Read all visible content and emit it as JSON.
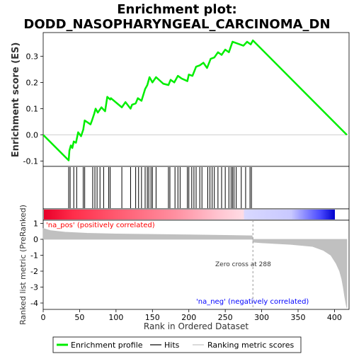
{
  "chart_data": {
    "type": "line",
    "title_line1": "Enrichment plot:",
    "title_line2": "DODD_NASOPHARYNGEAL_CARCINOMA_DN",
    "es_ylabel": "Enrichment score (ES)",
    "metric_ylabel_line1": "Ranked list metric (PreRanked)",
    "xlabel": "Rank in Ordered Dataset",
    "xlim": [
      0,
      420
    ],
    "es_ylim": [
      -0.12,
      0.39
    ],
    "metric_ylim": [
      -4.4,
      1.2
    ],
    "x_ticks": [
      0,
      50,
      100,
      150,
      200,
      250,
      300,
      350,
      400
    ],
    "es_ticks": [
      -0.1,
      0.0,
      0.1,
      0.2,
      0.3
    ],
    "metric_ticks": [
      1,
      0,
      -1,
      -2,
      -3,
      -4
    ],
    "es_curve": {
      "x": [
        0,
        35,
        36,
        38,
        40,
        42,
        45,
        48,
        52,
        55,
        57,
        65,
        67,
        70,
        72,
        75,
        80,
        85,
        88,
        92,
        93,
        108,
        113,
        120,
        122,
        127,
        130,
        135,
        140,
        143,
        146,
        150,
        155,
        165,
        172,
        175,
        180,
        185,
        190,
        198,
        200,
        205,
        210,
        215,
        220,
        225,
        230,
        235,
        240,
        245,
        250,
        255,
        260,
        265,
        270,
        275,
        280,
        285,
        288,
        417
      ],
      "y": [
        0.0,
        -0.097,
        -0.06,
        -0.04,
        -0.05,
        -0.025,
        -0.03,
        0.01,
        -0.005,
        0.02,
        0.055,
        0.04,
        0.055,
        0.08,
        0.1,
        0.085,
        0.105,
        0.09,
        0.145,
        0.135,
        0.14,
        0.105,
        0.125,
        0.1,
        0.115,
        0.12,
        0.14,
        0.13,
        0.175,
        0.19,
        0.22,
        0.2,
        0.22,
        0.195,
        0.19,
        0.21,
        0.2,
        0.225,
        0.215,
        0.205,
        0.23,
        0.225,
        0.26,
        0.265,
        0.275,
        0.255,
        0.29,
        0.295,
        0.315,
        0.305,
        0.325,
        0.315,
        0.355,
        0.35,
        0.345,
        0.34,
        0.355,
        0.345,
        0.36,
        0.0
      ]
    },
    "hits": [
      35,
      37,
      42,
      46,
      55,
      57,
      68,
      71,
      74,
      78,
      83,
      90,
      92,
      108,
      120,
      127,
      131,
      135,
      140,
      143,
      145,
      148,
      150,
      155,
      172,
      174,
      181,
      185,
      188,
      198,
      200,
      204,
      207,
      210,
      215,
      218,
      226,
      229,
      232,
      235,
      240,
      245,
      250,
      255,
      258,
      260,
      262,
      265,
      272,
      278,
      284,
      286
    ],
    "metric_curve": {
      "x": [
        0,
        10,
        30,
        60,
        100,
        150,
        200,
        250,
        287,
        288,
        300,
        340,
        370,
        385,
        395,
        402,
        407,
        410,
        412,
        414,
        416,
        417
      ],
      "y": [
        0.68,
        0.55,
        0.45,
        0.38,
        0.34,
        0.31,
        0.28,
        0.25,
        0.22,
        -0.18,
        -0.22,
        -0.32,
        -0.45,
        -0.7,
        -1.0,
        -1.5,
        -2.0,
        -2.5,
        -3.0,
        -3.6,
        -4.1,
        -4.3
      ]
    },
    "zero_cross_rank": 288,
    "zero_cross_label": "Zero cross at 288",
    "pos_label": "'na_pos' (positively correlated)",
    "neg_label": "'na_neg' (negatively correlated)",
    "colors": {
      "es_line": "#00ee00",
      "hit_line": "#000000",
      "metric_fill": "#c0c0c0",
      "pos_label": "#ff0000",
      "neg_label": "#0000ff"
    },
    "legend": [
      {
        "label": "Enrichment profile",
        "kind": "green-line"
      },
      {
        "label": "Hits",
        "kind": "black-line"
      },
      {
        "label": "Ranking metric scores",
        "kind": "gray-line"
      }
    ]
  }
}
